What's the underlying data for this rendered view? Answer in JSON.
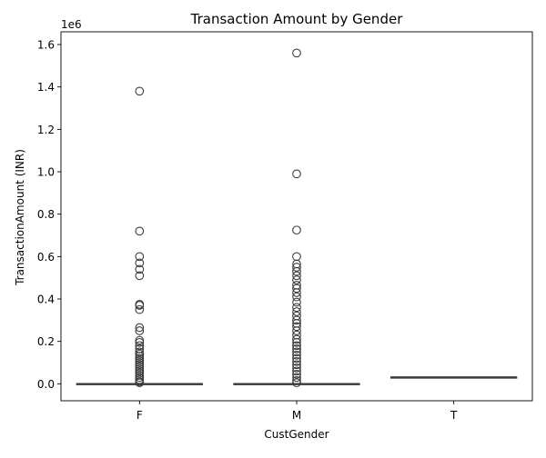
{
  "chart_data": {
    "type": "box",
    "title": "Transaction Amount by Gender",
    "xlabel": "CustGender",
    "ylabel": "TransactionAmount (INR)",
    "y_multiplier_label": "1e6",
    "categories": [
      "F",
      "M",
      "T"
    ],
    "ylim": [
      -0.08,
      1.66
    ],
    "y_ticks": [
      0.0,
      0.2,
      0.4,
      0.6,
      0.8,
      1.0,
      1.2,
      1.4,
      1.6
    ],
    "y_tick_labels": [
      "0.0",
      "0.2",
      "0.4",
      "0.6",
      "0.8",
      "1.0",
      "1.2",
      "1.4",
      "1.6"
    ],
    "grid": false,
    "box_color": "#3274a1",
    "line_color": "#3b3b3b",
    "boxes": [
      {
        "category": "F",
        "q1": 0.0002,
        "median": 0.0003,
        "q3": 0.001,
        "whisker_low": 0.0,
        "whisker_high": 0.002,
        "outliers": [
          1.38,
          0.72,
          0.6,
          0.57,
          0.54,
          0.51,
          0.375,
          0.37,
          0.35,
          0.265,
          0.25,
          0.205,
          0.195,
          0.18,
          0.165,
          0.15,
          0.14,
          0.13,
          0.12,
          0.11,
          0.1,
          0.09,
          0.08,
          0.07,
          0.06,
          0.05,
          0.04,
          0.03,
          0.02,
          0.01,
          0.005
        ]
      },
      {
        "category": "M",
        "q1": 0.0002,
        "median": 0.0003,
        "q3": 0.001,
        "whisker_low": 0.0,
        "whisker_high": 0.002,
        "outliers": [
          1.56,
          0.99,
          0.725,
          0.6,
          0.565,
          0.55,
          0.53,
          0.51,
          0.49,
          0.465,
          0.45,
          0.43,
          0.41,
          0.385,
          0.36,
          0.34,
          0.32,
          0.3,
          0.285,
          0.27,
          0.25,
          0.23,
          0.21,
          0.195,
          0.18,
          0.165,
          0.15,
          0.135,
          0.12,
          0.105,
          0.09,
          0.075,
          0.06,
          0.045,
          0.03,
          0.015,
          0.005
        ]
      },
      {
        "category": "T",
        "q1": 0.032,
        "median": 0.032,
        "q3": 0.032,
        "whisker_low": 0.032,
        "whisker_high": 0.032,
        "outliers": []
      }
    ]
  }
}
